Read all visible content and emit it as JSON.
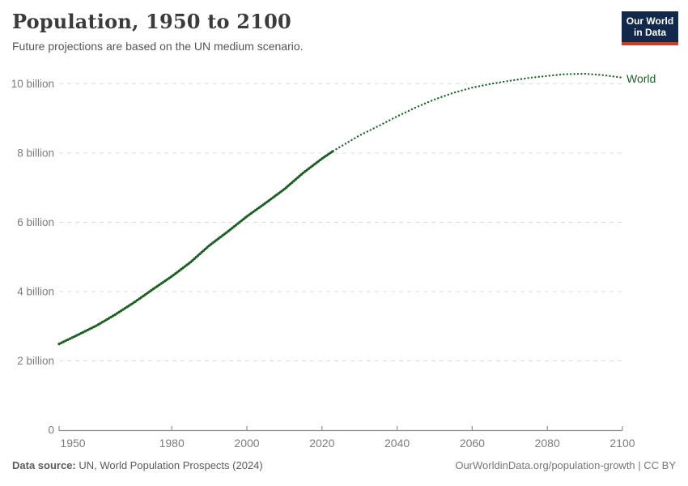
{
  "header": {
    "title": "Population, 1950 to 2100",
    "subtitle": "Future projections are based on the UN medium scenario."
  },
  "logo": {
    "line1": "Our World",
    "line2": "in Data"
  },
  "footer": {
    "datasource_label": "Data source:",
    "datasource_value": " UN, World Population Prospects (2024)",
    "attribution": "OurWorldinData.org/population-growth | CC BY"
  },
  "colors": {
    "line_green": "#1f5e26",
    "gridline": "#dcdcdc",
    "axis": "#919191",
    "tick_text": "#7c7c7c",
    "title_text": "#3b3b3b",
    "subtitle_text": "#555555",
    "logo_bg": "#12294b",
    "logo_red": "#c7402d"
  },
  "chart_data": {
    "type": "line",
    "title": "Population, 1950 to 2100",
    "entity_label": "World",
    "xlabel": "",
    "ylabel": "",
    "xlim": [
      1950,
      2100
    ],
    "ylim": [
      0,
      10.5
    ],
    "grid": true,
    "legend_position": "right-of-line-end",
    "y_ticks": [
      {
        "value": 0,
        "label": "0"
      },
      {
        "value": 2,
        "label": "2 billion"
      },
      {
        "value": 4,
        "label": "4 billion"
      },
      {
        "value": 6,
        "label": "6 billion"
      },
      {
        "value": 8,
        "label": "8 billion"
      },
      {
        "value": 10,
        "label": "10 billion"
      }
    ],
    "x_ticks": [
      {
        "value": 1950,
        "label": "1950"
      },
      {
        "value": 1980,
        "label": "1980"
      },
      {
        "value": 2000,
        "label": "2000"
      },
      {
        "value": 2020,
        "label": "2020"
      },
      {
        "value": 2040,
        "label": "2040"
      },
      {
        "value": 2060,
        "label": "2060"
      },
      {
        "value": 2080,
        "label": "2080"
      },
      {
        "value": 2100,
        "label": "2100"
      }
    ],
    "series": [
      {
        "name": "historical",
        "style": "solid-beaded",
        "unit": "billion people",
        "points": [
          [
            1950,
            2.49
          ],
          [
            1955,
            2.75
          ],
          [
            1960,
            3.02
          ],
          [
            1965,
            3.34
          ],
          [
            1970,
            3.69
          ],
          [
            1975,
            4.07
          ],
          [
            1980,
            4.44
          ],
          [
            1985,
            4.85
          ],
          [
            1990,
            5.33
          ],
          [
            1995,
            5.74
          ],
          [
            2000,
            6.17
          ],
          [
            2005,
            6.56
          ],
          [
            2010,
            6.96
          ],
          [
            2015,
            7.43
          ],
          [
            2020,
            7.84
          ],
          [
            2023,
            8.06
          ]
        ]
      },
      {
        "name": "projection",
        "style": "dotted",
        "unit": "billion people",
        "points": [
          [
            2023,
            8.06
          ],
          [
            2025,
            8.19
          ],
          [
            2030,
            8.51
          ],
          [
            2035,
            8.78
          ],
          [
            2040,
            9.06
          ],
          [
            2045,
            9.32
          ],
          [
            2050,
            9.55
          ],
          [
            2055,
            9.74
          ],
          [
            2060,
            9.89
          ],
          [
            2065,
            10.0
          ],
          [
            2070,
            10.09
          ],
          [
            2075,
            10.17
          ],
          [
            2080,
            10.23
          ],
          [
            2085,
            10.28
          ],
          [
            2090,
            10.29
          ],
          [
            2095,
            10.25
          ],
          [
            2100,
            10.18
          ]
        ]
      }
    ]
  }
}
